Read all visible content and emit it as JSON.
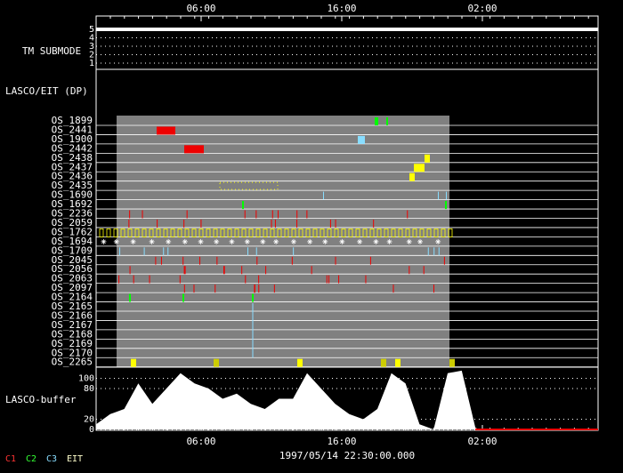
{
  "header": {
    "time_labels": [
      "06:00",
      "16:00",
      "02:00"
    ]
  },
  "tm_submode": {
    "label": "TM SUBMODE",
    "ticks": [
      "5",
      "4",
      "3",
      "2",
      "1"
    ]
  },
  "lasco_eit": {
    "label": "LASCO/EIT (DP)",
    "rows": [
      "OS_1899",
      "OS_2441",
      "OS_1900",
      "OS_2442",
      "OS_2438",
      "OS_2437",
      "OS_2436",
      "OS_2435",
      "OS_1690",
      "OS_1692",
      "OS_2236",
      "OS_2059",
      "OS_1762",
      "OS_1694",
      "OS_1709",
      "OS_2045",
      "OS_2056",
      "OS_2063",
      "OS_2097",
      "OS_2164",
      "OS_2165",
      "OS_2166",
      "OS_2167",
      "OS_2168",
      "OS_2169",
      "OS_2170",
      "OS_2265"
    ]
  },
  "buffer": {
    "label": "LASCO-buffer",
    "ylim": [
      0,
      120
    ],
    "yticks": [
      0,
      20,
      80,
      100
    ],
    "values": [
      10,
      30,
      40,
      90,
      50,
      80,
      110,
      90,
      80,
      60,
      70,
      50,
      40,
      60,
      60,
      110,
      80,
      50,
      30,
      20,
      40,
      110,
      90,
      10,
      0,
      110,
      115,
      0,
      0,
      0,
      0,
      0,
      0,
      0,
      0,
      0
    ]
  },
  "footer": {
    "time_labels": [
      "06:00",
      "16:00",
      "02:00"
    ],
    "date": "1997/05/14 22:30:00.000",
    "legend": [
      "C1",
      "C2",
      "C3",
      "EIT"
    ]
  }
}
